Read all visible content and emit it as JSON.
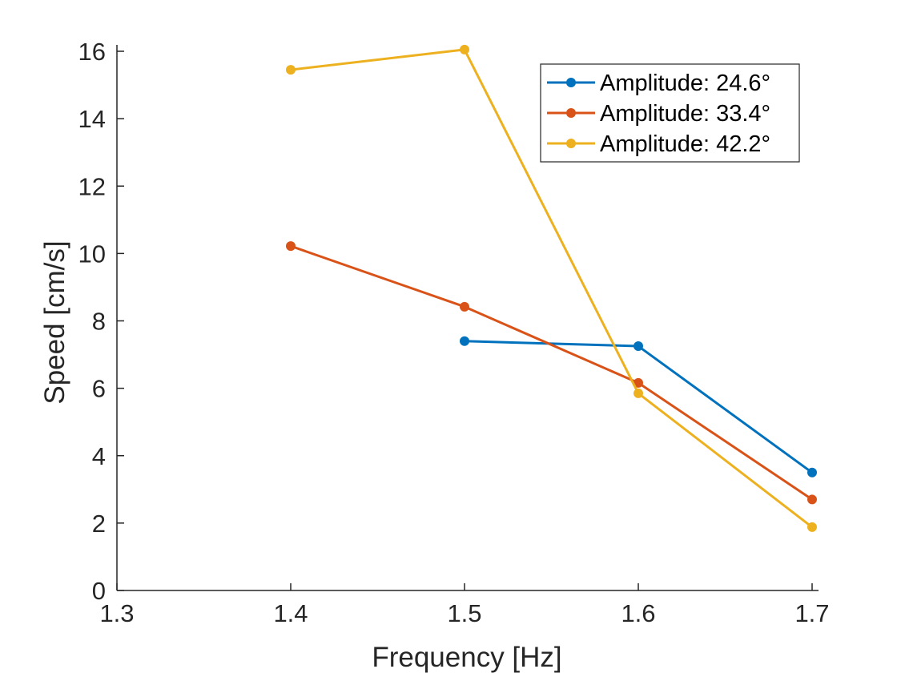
{
  "chart_data": {
    "type": "line",
    "title": "",
    "xlabel": "Frequency [Hz]",
    "ylabel": "Speed [cm/s]",
    "xlim": [
      1.3,
      1.7
    ],
    "ylim": [
      0,
      16
    ],
    "xticks": [
      1.3,
      1.4,
      1.5,
      1.6,
      1.7
    ],
    "xtick_labels": [
      "1.3",
      "1.4",
      "1.5",
      "1.6",
      "1.7"
    ],
    "yticks": [
      0,
      2,
      4,
      6,
      8,
      10,
      12,
      14,
      16
    ],
    "ytick_labels": [
      "0",
      "2",
      "4",
      "6",
      "8",
      "10",
      "12",
      "14",
      "16"
    ],
    "grid": false,
    "legend_position": "top-right",
    "series": [
      {
        "name": "Amplitude: 24.6°",
        "color": "#0072BD",
        "x": [
          1.5,
          1.6,
          1.7
        ],
        "y": [
          7.4,
          7.25,
          3.5
        ]
      },
      {
        "name": "Amplitude: 33.4°",
        "color": "#D95319",
        "x": [
          1.4,
          1.5,
          1.6,
          1.7
        ],
        "y": [
          10.22,
          8.42,
          6.16,
          2.7
        ]
      },
      {
        "name": "Amplitude: 42.2°",
        "color": "#EDB120",
        "x": [
          1.4,
          1.5,
          1.6,
          1.7
        ],
        "y": [
          15.45,
          16.05,
          5.85,
          1.88
        ]
      }
    ]
  }
}
